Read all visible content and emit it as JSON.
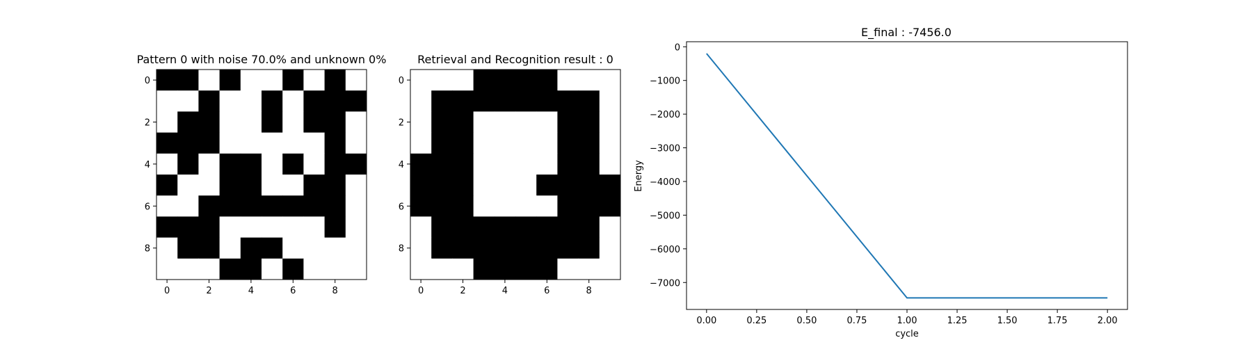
{
  "colors": {
    "background": "#ffffff",
    "cell_on": "#000000",
    "cell_off": "#ffffff",
    "line": "#1f77b4",
    "axis": "#000000"
  },
  "chart_data": [
    {
      "type": "heatmap",
      "title": "Pattern 0 with noise 70.0% and unknown 0%",
      "xlabel": "",
      "ylabel": "",
      "colormap": "binary (1 = black, 0 = white)",
      "x_ticks": [
        "0",
        "2",
        "4",
        "6",
        "8"
      ],
      "y_ticks": [
        "0",
        "2",
        "4",
        "6",
        "8"
      ],
      "values": [
        [
          1,
          1,
          0,
          1,
          0,
          0,
          1,
          0,
          1,
          0
        ],
        [
          0,
          0,
          1,
          0,
          0,
          1,
          0,
          1,
          1,
          1
        ],
        [
          0,
          1,
          1,
          0,
          0,
          1,
          0,
          1,
          1,
          0
        ],
        [
          1,
          1,
          1,
          0,
          0,
          0,
          0,
          0,
          1,
          0
        ],
        [
          0,
          1,
          0,
          1,
          1,
          0,
          1,
          0,
          1,
          1
        ],
        [
          1,
          0,
          0,
          1,
          1,
          0,
          0,
          1,
          1,
          0
        ],
        [
          0,
          0,
          1,
          1,
          1,
          1,
          1,
          1,
          1,
          0
        ],
        [
          1,
          1,
          1,
          0,
          0,
          0,
          0,
          0,
          1,
          0
        ],
        [
          0,
          1,
          1,
          0,
          1,
          1,
          0,
          0,
          0,
          0
        ],
        [
          0,
          0,
          0,
          1,
          1,
          0,
          1,
          0,
          0,
          0
        ]
      ]
    },
    {
      "type": "heatmap",
      "title": "Retrieval and Recognition result : 0",
      "xlabel": "",
      "ylabel": "",
      "colormap": "binary (1 = black, 0 = white)",
      "x_ticks": [
        "0",
        "2",
        "4",
        "6",
        "8"
      ],
      "y_ticks": [
        "0",
        "2",
        "4",
        "6",
        "8"
      ],
      "values": [
        [
          0,
          0,
          0,
          1,
          1,
          1,
          1,
          0,
          0,
          0
        ],
        [
          0,
          1,
          1,
          1,
          1,
          1,
          1,
          1,
          1,
          0
        ],
        [
          0,
          1,
          1,
          0,
          0,
          0,
          0,
          1,
          1,
          0
        ],
        [
          0,
          1,
          1,
          0,
          0,
          0,
          0,
          1,
          1,
          0
        ],
        [
          1,
          1,
          1,
          0,
          0,
          0,
          0,
          1,
          1,
          0
        ],
        [
          1,
          1,
          1,
          0,
          0,
          0,
          1,
          1,
          1,
          1
        ],
        [
          1,
          1,
          1,
          0,
          0,
          0,
          0,
          1,
          1,
          1
        ],
        [
          0,
          1,
          1,
          1,
          1,
          1,
          1,
          1,
          1,
          0
        ],
        [
          0,
          1,
          1,
          1,
          1,
          1,
          1,
          1,
          1,
          0
        ],
        [
          0,
          0,
          0,
          1,
          1,
          1,
          1,
          0,
          0,
          0
        ]
      ]
    },
    {
      "type": "line",
      "title": "E_final : -7456.0",
      "xlabel": "cycle",
      "ylabel": "Energy",
      "x": [
        0,
        1,
        2
      ],
      "series": [
        {
          "values": [
            -200,
            -7456,
            -7456
          ]
        }
      ],
      "xlim": [
        -0.1,
        2.1
      ],
      "ylim": [
        -7800,
        150
      ],
      "x_ticks": [
        "0.00",
        "0.25",
        "0.50",
        "0.75",
        "1.00",
        "1.25",
        "1.50",
        "1.75",
        "2.00"
      ],
      "x_tick_values": [
        0,
        0.25,
        0.5,
        0.75,
        1.0,
        1.25,
        1.5,
        1.75,
        2.0
      ],
      "y_ticks": [
        "0",
        "−1000",
        "−2000",
        "−3000",
        "−4000",
        "−5000",
        "−6000",
        "−7000"
      ],
      "y_tick_values": [
        0,
        -1000,
        -2000,
        -3000,
        -4000,
        -5000,
        -6000,
        -7000
      ],
      "grid": false,
      "legend": "none"
    }
  ]
}
